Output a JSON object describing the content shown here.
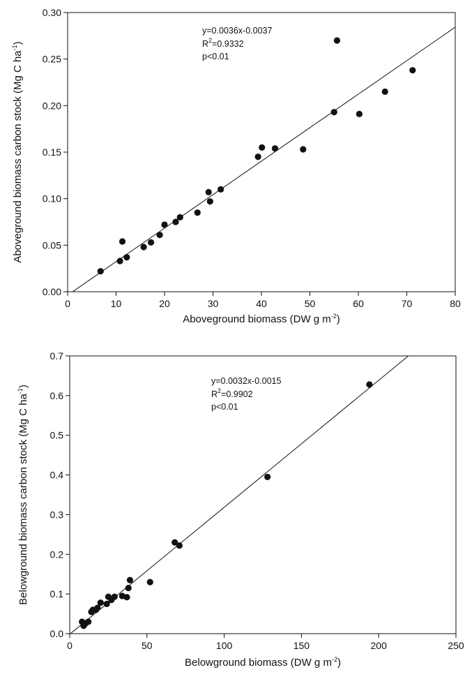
{
  "chart_data": [
    {
      "type": "scatter",
      "title": "",
      "xlabel": "Aboveground biomass (DW g m",
      "xlabel_sup": "-2",
      "xlabel_end": ")",
      "ylabel": "Aboveground biomass carbon stock (Mg C ha",
      "ylabel_sup": "-1",
      "ylabel_end": ")",
      "xlim": [
        0,
        80
      ],
      "ylim": [
        0.0,
        0.3
      ],
      "x_ticks": [
        "0",
        "10",
        "20",
        "30",
        "40",
        "50",
        "60",
        "70",
        "80"
      ],
      "y_ticks": [
        "0.00",
        "0.05",
        "0.10",
        "0.15",
        "0.20",
        "0.25",
        "0.30"
      ],
      "grid": false,
      "annotations": {
        "equation": "y=0.0036x-0.0037",
        "r2_label": "R",
        "r2_sup": "2",
        "r2_value": "=0.9332",
        "p_value": "p<0.01"
      },
      "regression": {
        "slope": 0.0036,
        "intercept": -0.0037
      },
      "points": [
        [
          6.8,
          0.022
        ],
        [
          10.8,
          0.033
        ],
        [
          11.3,
          0.054
        ],
        [
          12.2,
          0.037
        ],
        [
          15.7,
          0.048
        ],
        [
          17.2,
          0.053
        ],
        [
          19.0,
          0.061
        ],
        [
          20.0,
          0.072
        ],
        [
          22.3,
          0.075
        ],
        [
          23.2,
          0.08
        ],
        [
          26.8,
          0.085
        ],
        [
          29.1,
          0.107
        ],
        [
          29.4,
          0.097
        ],
        [
          31.6,
          0.11
        ],
        [
          39.3,
          0.145
        ],
        [
          40.1,
          0.155
        ],
        [
          42.8,
          0.154
        ],
        [
          48.6,
          0.153
        ],
        [
          55.0,
          0.193
        ],
        [
          55.6,
          0.27
        ],
        [
          60.2,
          0.191
        ],
        [
          65.5,
          0.215
        ],
        [
          71.2,
          0.238
        ]
      ]
    },
    {
      "type": "scatter",
      "title": "",
      "xlabel": "Belowground biomass (DW g m",
      "xlabel_sup": "-2",
      "xlabel_end": ")",
      "ylabel": "Belowground biomass carbon stock (Mg C ha",
      "ylabel_sup": "-1",
      "ylabel_end": ")",
      "xlim": [
        0,
        250
      ],
      "ylim": [
        0.0,
        0.7
      ],
      "x_ticks": [
        "0",
        "50",
        "100",
        "150",
        "200",
        "250"
      ],
      "y_ticks": [
        "0.0",
        "0.1",
        "0.2",
        "0.3",
        "0.4",
        "0.5",
        "0.6",
        "0.7"
      ],
      "grid": false,
      "annotations": {
        "equation": "y=0.0032x-0.0015",
        "r2_label": "R",
        "r2_sup": "2",
        "r2_value": "=0.9902",
        "p_value": "p<0.01"
      },
      "regression": {
        "slope": 0.0032,
        "intercept": -0.0015
      },
      "points": [
        [
          8,
          0.03
        ],
        [
          9,
          0.02
        ],
        [
          10,
          0.025
        ],
        [
          12,
          0.03
        ],
        [
          14,
          0.055
        ],
        [
          15,
          0.06
        ],
        [
          17,
          0.06
        ],
        [
          18,
          0.065
        ],
        [
          20,
          0.078
        ],
        [
          24,
          0.075
        ],
        [
          25,
          0.093
        ],
        [
          27,
          0.085
        ],
        [
          29,
          0.093
        ],
        [
          34,
          0.095
        ],
        [
          37,
          0.092
        ],
        [
          38,
          0.115
        ],
        [
          39,
          0.135
        ],
        [
          52,
          0.13
        ],
        [
          68,
          0.23
        ],
        [
          71,
          0.222
        ],
        [
          128,
          0.395
        ],
        [
          194,
          0.628
        ]
      ]
    }
  ]
}
